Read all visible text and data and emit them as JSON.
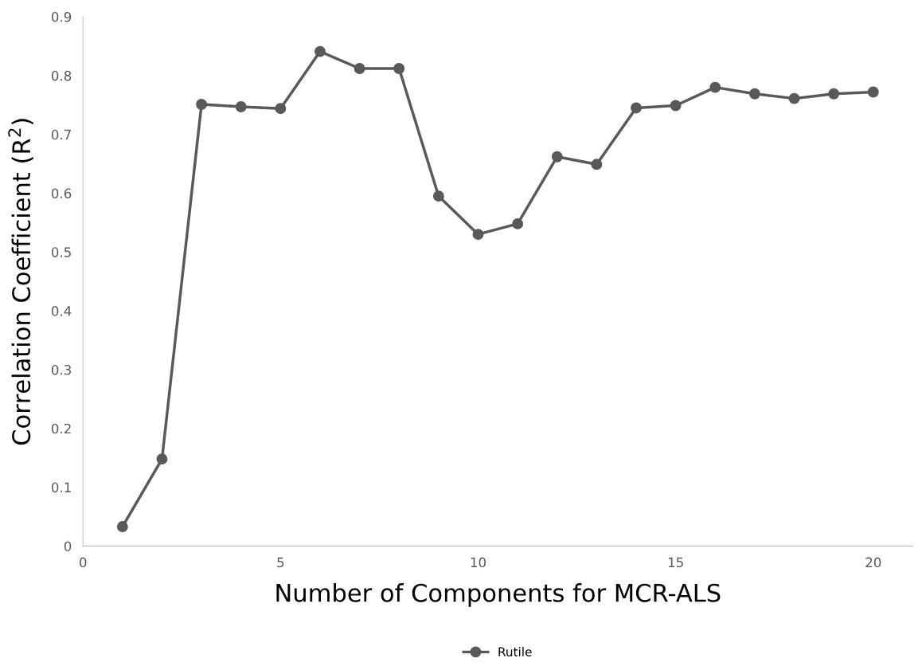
{
  "chart_data": {
    "type": "line",
    "xlabel": "Number of Components for MCR-ALS",
    "ylabel": "Correlation Coefficient (R$^{2}$)",
    "x": [
      1,
      2,
      3,
      4,
      5,
      6,
      7,
      8,
      9,
      10,
      11,
      12,
      13,
      14,
      15,
      16,
      17,
      18,
      19,
      20
    ],
    "series": [
      {
        "name": "Rutile",
        "color": "#595959",
        "values": [
          0.033,
          0.148,
          0.751,
          0.747,
          0.744,
          0.841,
          0.812,
          0.812,
          0.595,
          0.53,
          0.548,
          0.662,
          0.649,
          0.745,
          0.749,
          0.78,
          0.769,
          0.761,
          0.769,
          0.772
        ]
      }
    ],
    "xlim": [
      0,
      21
    ],
    "xticks": [
      0,
      5,
      10,
      15,
      20
    ],
    "ylim": [
      0,
      0.9
    ],
    "yticks": [
      0,
      0.1,
      0.2,
      0.3,
      0.4,
      0.5,
      0.6,
      0.7,
      0.8,
      0.9
    ],
    "grid": false,
    "legend": "bottom",
    "marker": "circle",
    "line_style": "solid"
  }
}
